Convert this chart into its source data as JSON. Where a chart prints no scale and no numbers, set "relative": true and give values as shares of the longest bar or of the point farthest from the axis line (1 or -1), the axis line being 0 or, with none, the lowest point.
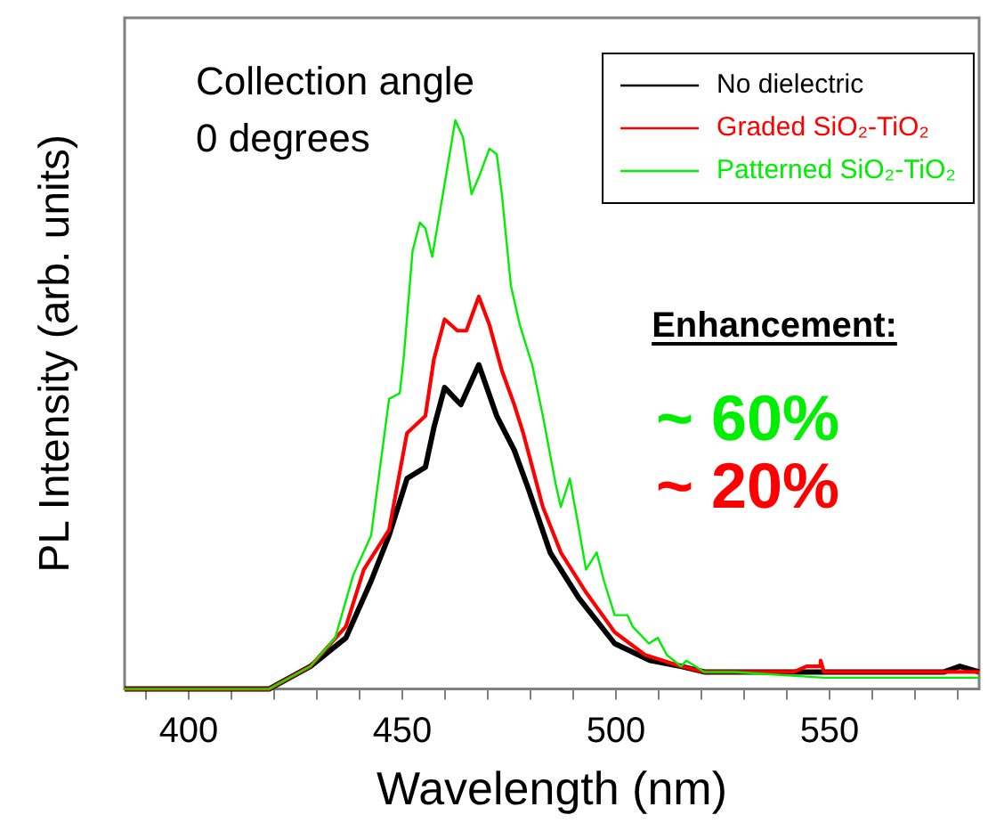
{
  "chart_data": {
    "type": "line",
    "relative": true,
    "xlabel": "Wavelength (nm)",
    "ylabel": "PL Intensity (arb. units)",
    "xlim": [
      385,
      585
    ],
    "xticks": [
      {
        "value": 390,
        "label": null
      },
      400,
      {
        "value": 410,
        "label": null
      },
      {
        "value": 420,
        "label": null
      },
      {
        "value": 430,
        "label": null
      },
      {
        "value": 440,
        "label": null
      },
      450,
      {
        "value": 460,
        "label": null
      },
      {
        "value": 470,
        "label": null
      },
      {
        "value": 480,
        "label": null
      },
      {
        "value": 490,
        "label": null
      },
      500,
      {
        "value": 510,
        "label": null
      },
      {
        "value": 520,
        "label": null
      },
      {
        "value": 530,
        "label": null
      },
      {
        "value": 540,
        "label": null
      },
      550,
      {
        "value": 560,
        "label": null
      },
      {
        "value": 570,
        "label": null
      },
      {
        "value": 580,
        "label": null
      }
    ],
    "grid": false,
    "legend": "top right",
    "marker": "none",
    "line_style": "solid",
    "annotations": [
      "Collection angle",
      "0 degrees",
      "Enhancement:",
      "~ 60%",
      "~ 20%"
    ],
    "series": [
      {
        "name": "No dielectric",
        "color": "#000000",
        "x": [
          385,
          418.8,
          428.5,
          436.8,
          442.7,
          446.9,
          451.1,
          455.4,
          457.4,
          459.9,
          463.7,
          467.9,
          472.1,
          476.2,
          479.6,
          484.6,
          491.3,
          499.7,
          508.1,
          515.2,
          520.7,
          576.8,
          580.5,
          585
        ],
        "values": [
          0,
          0,
          0.04,
          0.09,
          0.19,
          0.27,
          0.37,
          0.39,
          0.46,
          0.53,
          0.5,
          0.57,
          0.48,
          0.42,
          0.35,
          0.24,
          0.16,
          0.08,
          0.05,
          0.04,
          0.03,
          0.03,
          0.04,
          0.03
        ]
      },
      {
        "name": "Graded SiO₂-TiO₂",
        "color": "#ff0000",
        "x": [
          385,
          418.8,
          428.5,
          436.8,
          441,
          446.9,
          451.1,
          455.4,
          457.4,
          459.9,
          462.9,
          465,
          467.9,
          470.4,
          473.3,
          476.2,
          478.3,
          482.9,
          487.1,
          493,
          499.7,
          506.8,
          515.2,
          520.7,
          541.6,
          544.6,
          547.5,
          547.9,
          548.7,
          585
        ],
        "values": [
          0,
          0,
          0.04,
          0.11,
          0.21,
          0.28,
          0.45,
          0.48,
          0.58,
          0.65,
          0.63,
          0.63,
          0.69,
          0.64,
          0.56,
          0.5,
          0.45,
          0.32,
          0.24,
          0.17,
          0.1,
          0.06,
          0.04,
          0.03,
          0.03,
          0.04,
          0.04,
          0.05,
          0.03,
          0.03
        ]
      },
      {
        "name": "Patterned SiO₂-TiO₂",
        "color": "#00ee00",
        "x": [
          385,
          418.8,
          428.5,
          434.3,
          438.5,
          442.7,
          446.9,
          449.4,
          450.3,
          452.4,
          454.1,
          455.4,
          457,
          459.5,
          462.4,
          464.2,
          466.2,
          467.9,
          470.4,
          472.1,
          473.3,
          475.4,
          477.5,
          480.4,
          482.9,
          485.9,
          487.1,
          489.2,
          490.9,
          493,
          495.5,
          497.2,
          499.7,
          502.7,
          503.9,
          507.7,
          509.8,
          511.9,
          515.2,
          516.5,
          520.7,
          527.8,
          548.7,
          585
        ],
        "values": [
          0,
          0,
          0.04,
          0.09,
          0.2,
          0.27,
          0.51,
          0.52,
          0.58,
          0.77,
          0.82,
          0.81,
          0.76,
          0.87,
          1,
          0.97,
          0.87,
          0.9,
          0.95,
          0.94,
          0.87,
          0.71,
          0.64,
          0.57,
          0.48,
          0.36,
          0.32,
          0.37,
          0.3,
          0.21,
          0.24,
          0.19,
          0.13,
          0.13,
          0.11,
          0.08,
          0.09,
          0.06,
          0.04,
          0.05,
          0.03,
          0.03,
          0.02,
          0.02
        ]
      }
    ]
  }
}
